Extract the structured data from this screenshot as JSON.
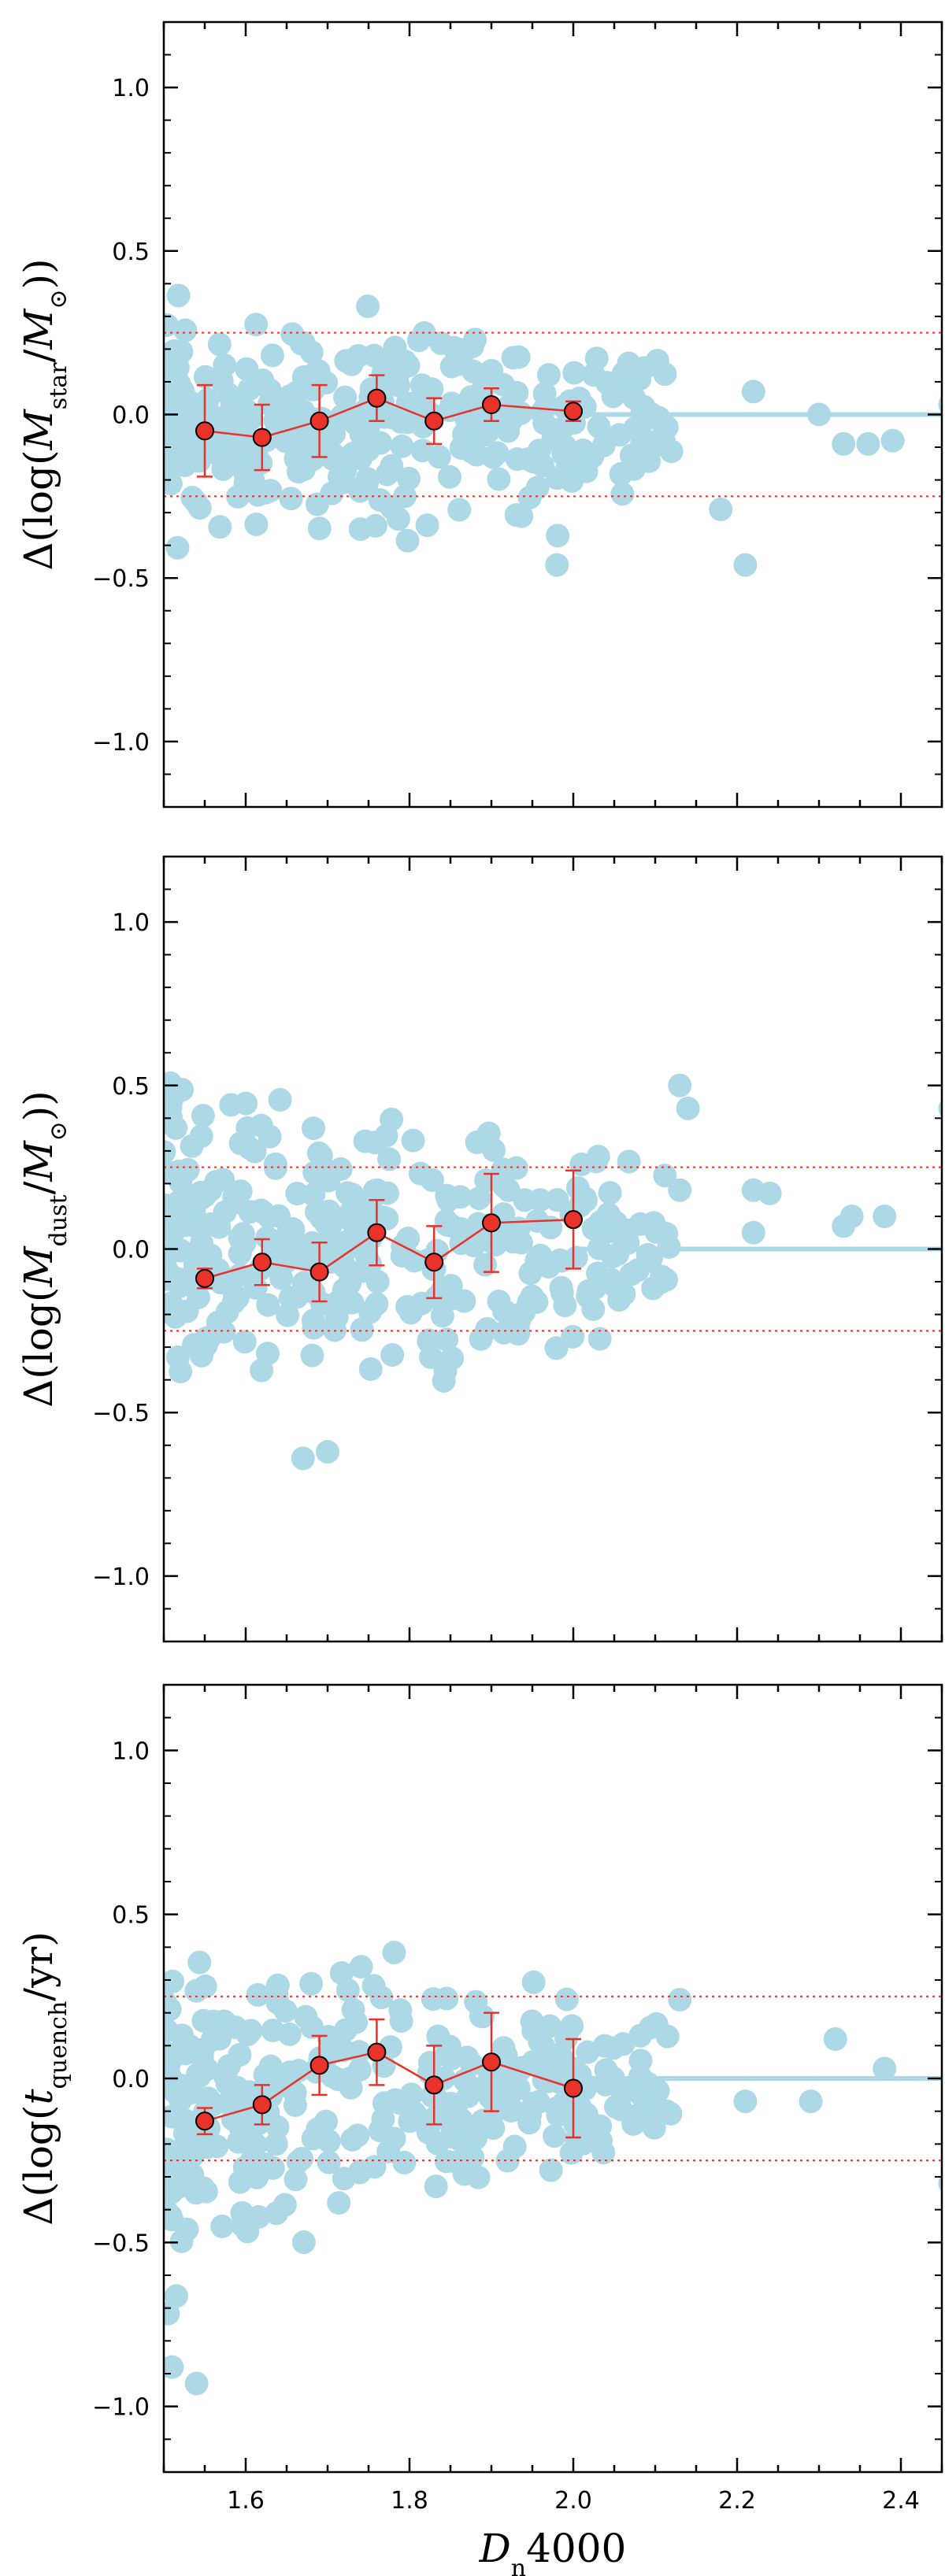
{
  "chart_data": [
    {
      "type": "scatter",
      "ylabel": {
        "pre": "Δ(log(",
        "var": "M",
        "sub": "star",
        "post": "/",
        "var2": "M",
        "sub2": "⊙",
        "end": "))"
      },
      "xlim": [
        1.5,
        2.45
      ],
      "ylim": [
        -1.2,
        1.2
      ],
      "yticks": [
        1.0,
        0.5,
        0.0,
        -0.5,
        -1.0
      ],
      "ytick_labels": [
        "1.0",
        "0.5",
        "0.0",
        "−0.5",
        "−1.0"
      ],
      "reference_lines": [
        0.25,
        -0.25
      ],
      "zero_line": 0.0,
      "point_color": "#add8e6",
      "seed": 11,
      "scatter_envelope": [
        [
          1.5,
          -0.45,
          0.38
        ],
        [
          1.6,
          -0.45,
          0.4
        ],
        [
          1.8,
          -0.47,
          0.4
        ],
        [
          1.95,
          -0.47,
          0.36
        ],
        [
          2.05,
          -0.35,
          0.3
        ],
        [
          2.15,
          -0.25,
          0.2
        ],
        [
          2.25,
          -0.1,
          0.08
        ]
      ],
      "scatter_extra": [
        [
          2.21,
          -0.46
        ],
        [
          1.98,
          -0.46
        ],
        [
          2.18,
          -0.29
        ],
        [
          2.22,
          0.07
        ],
        [
          2.36,
          -0.09
        ],
        [
          2.33,
          -0.09
        ],
        [
          2.39,
          -0.08
        ],
        [
          2.46,
          0.03
        ],
        [
          2.3,
          0.0
        ]
      ],
      "binned": {
        "x": [
          1.55,
          1.62,
          1.69,
          1.76,
          1.83,
          1.9,
          2.0
        ],
        "y": [
          -0.05,
          -0.07,
          -0.02,
          0.05,
          -0.02,
          0.03,
          0.01
        ],
        "err": [
          0.14,
          0.1,
          0.11,
          0.07,
          0.07,
          0.05,
          0.03
        ]
      }
    },
    {
      "type": "scatter",
      "ylabel": {
        "pre": "Δ(log(",
        "var": "M",
        "sub": "dust",
        "post": "/",
        "var2": "M",
        "sub2": "⊙",
        "end": "))"
      },
      "xlim": [
        1.5,
        2.45
      ],
      "ylim": [
        -1.2,
        1.2
      ],
      "yticks": [
        1.0,
        0.5,
        0.0,
        -0.5,
        -1.0
      ],
      "ytick_labels": [
        "1.0",
        "0.5",
        "0.0",
        "−0.5",
        "−1.0"
      ],
      "reference_lines": [
        0.25,
        -0.25
      ],
      "zero_line": 0.0,
      "point_color": "#add8e6",
      "seed": 23,
      "scatter_envelope": [
        [
          1.5,
          -0.52,
          0.72
        ],
        [
          1.6,
          -0.55,
          0.65
        ],
        [
          1.8,
          -0.63,
          0.55
        ],
        [
          1.95,
          -0.5,
          0.45
        ],
        [
          2.05,
          -0.35,
          0.4
        ],
        [
          2.15,
          -0.25,
          0.25
        ],
        [
          2.25,
          -0.1,
          0.1
        ]
      ],
      "scatter_extra": [
        [
          2.13,
          0.5
        ],
        [
          2.14,
          0.43
        ],
        [
          2.13,
          0.18
        ],
        [
          2.22,
          0.18
        ],
        [
          2.24,
          0.17
        ],
        [
          2.22,
          0.05
        ],
        [
          2.34,
          0.1
        ],
        [
          2.38,
          0.1
        ],
        [
          2.33,
          0.07
        ],
        [
          2.46,
          0.43
        ],
        [
          1.67,
          -0.64
        ],
        [
          1.7,
          -0.62
        ]
      ],
      "binned": {
        "x": [
          1.55,
          1.62,
          1.69,
          1.76,
          1.83,
          1.9,
          2.0
        ],
        "y": [
          -0.09,
          -0.04,
          -0.07,
          0.05,
          -0.04,
          0.08,
          0.09
        ],
        "err": [
          0.03,
          0.07,
          0.09,
          0.1,
          0.11,
          0.15,
          0.15
        ]
      }
    },
    {
      "type": "scatter",
      "ylabel": {
        "pre": "Δ(log(",
        "var": "t",
        "sub": "quench",
        "post": "/yr",
        "var2": "",
        "sub2": "",
        "end": ")"
      },
      "xlabel": {
        "var": "D",
        "sub": "n",
        "post": "4000"
      },
      "xlim": [
        1.5,
        2.45
      ],
      "ylim": [
        -1.2,
        1.2
      ],
      "xticks": [
        1.6,
        1.8,
        2.0,
        2.2,
        2.4
      ],
      "xtick_labels": [
        "1.6",
        "1.8",
        "2.0",
        "2.2",
        "2.4"
      ],
      "yticks": [
        1.0,
        0.5,
        0.0,
        -0.5,
        -1.0
      ],
      "ytick_labels": [
        "1.0",
        "0.5",
        "0.0",
        "−0.5",
        "−1.0"
      ],
      "reference_lines": [
        0.25,
        -0.25
      ],
      "zero_line": 0.0,
      "point_color": "#add8e6",
      "seed": 37,
      "scatter_envelope": [
        [
          1.5,
          -0.92,
          0.6
        ],
        [
          1.6,
          -0.75,
          0.5
        ],
        [
          1.7,
          -0.6,
          0.5
        ],
        [
          1.8,
          -0.47,
          0.4
        ],
        [
          1.95,
          -0.45,
          0.35
        ],
        [
          2.05,
          -0.3,
          0.3
        ],
        [
          2.15,
          -0.2,
          0.2
        ],
        [
          2.25,
          -0.1,
          0.1
        ]
      ],
      "scatter_extra": [
        [
          2.13,
          0.24
        ],
        [
          2.32,
          0.12
        ],
        [
          2.21,
          -0.07
        ],
        [
          2.29,
          -0.07
        ],
        [
          2.38,
          0.03
        ],
        [
          2.46,
          -0.32
        ],
        [
          1.54,
          -0.93
        ],
        [
          1.51,
          -0.88
        ]
      ],
      "binned": {
        "x": [
          1.55,
          1.62,
          1.69,
          1.76,
          1.83,
          1.9,
          2.0
        ],
        "y": [
          -0.13,
          -0.08,
          0.04,
          0.08,
          -0.02,
          0.05,
          -0.03
        ],
        "err": [
          0.04,
          0.06,
          0.09,
          0.1,
          0.12,
          0.15,
          0.15
        ]
      }
    }
  ]
}
